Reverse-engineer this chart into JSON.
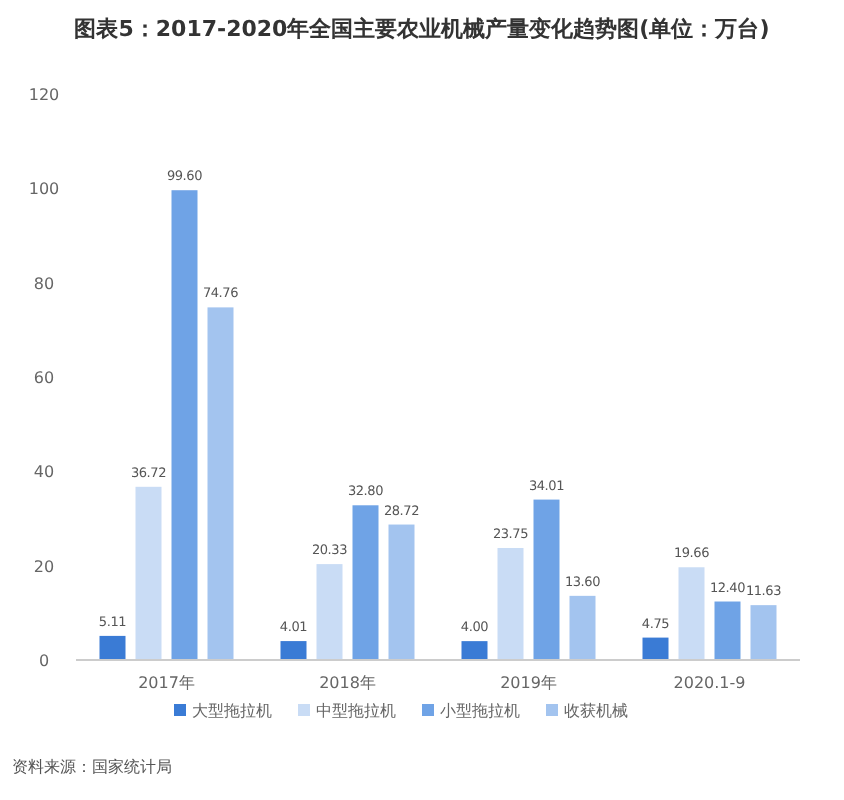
{
  "chart_data": {
    "type": "bar",
    "title": "图表5：2017-2020年全国主要农业机械产量变化趋势图(单位：万台)",
    "categories": [
      "2017年",
      "2018年",
      "2019年",
      "2020.1-9"
    ],
    "series": [
      {
        "name": "大型拖拉机",
        "color": "#3a7bd5",
        "values": [
          5.11,
          4.01,
          4.0,
          4.75
        ],
        "value_labels": [
          "5.11",
          "4.01",
          "4.00",
          "4.75"
        ]
      },
      {
        "name": "中型拖拉机",
        "color": "#c9dcf5",
        "values": [
          36.72,
          20.33,
          23.75,
          19.66
        ],
        "value_labels": [
          "36.72",
          "20.33",
          "23.75",
          "19.66"
        ]
      },
      {
        "name": "小型拖拉机",
        "color": "#6fa3e6",
        "values": [
          99.6,
          32.8,
          34.01,
          12.4
        ],
        "value_labels": [
          "99.60",
          "32.80",
          "34.01",
          "12.40"
        ]
      },
      {
        "name": "收获机械",
        "color": "#a3c4ef",
        "values": [
          74.76,
          28.72,
          13.6,
          11.63
        ],
        "value_labels": [
          "74.76",
          "28.72",
          "13.60",
          "11.63"
        ]
      }
    ],
    "ylim": [
      0,
      120
    ],
    "yticks": [
      0,
      20,
      40,
      60,
      80,
      100,
      120
    ],
    "grid": false,
    "legend": "bottom",
    "annotations": [
      "资料来源：国家统计局"
    ]
  }
}
